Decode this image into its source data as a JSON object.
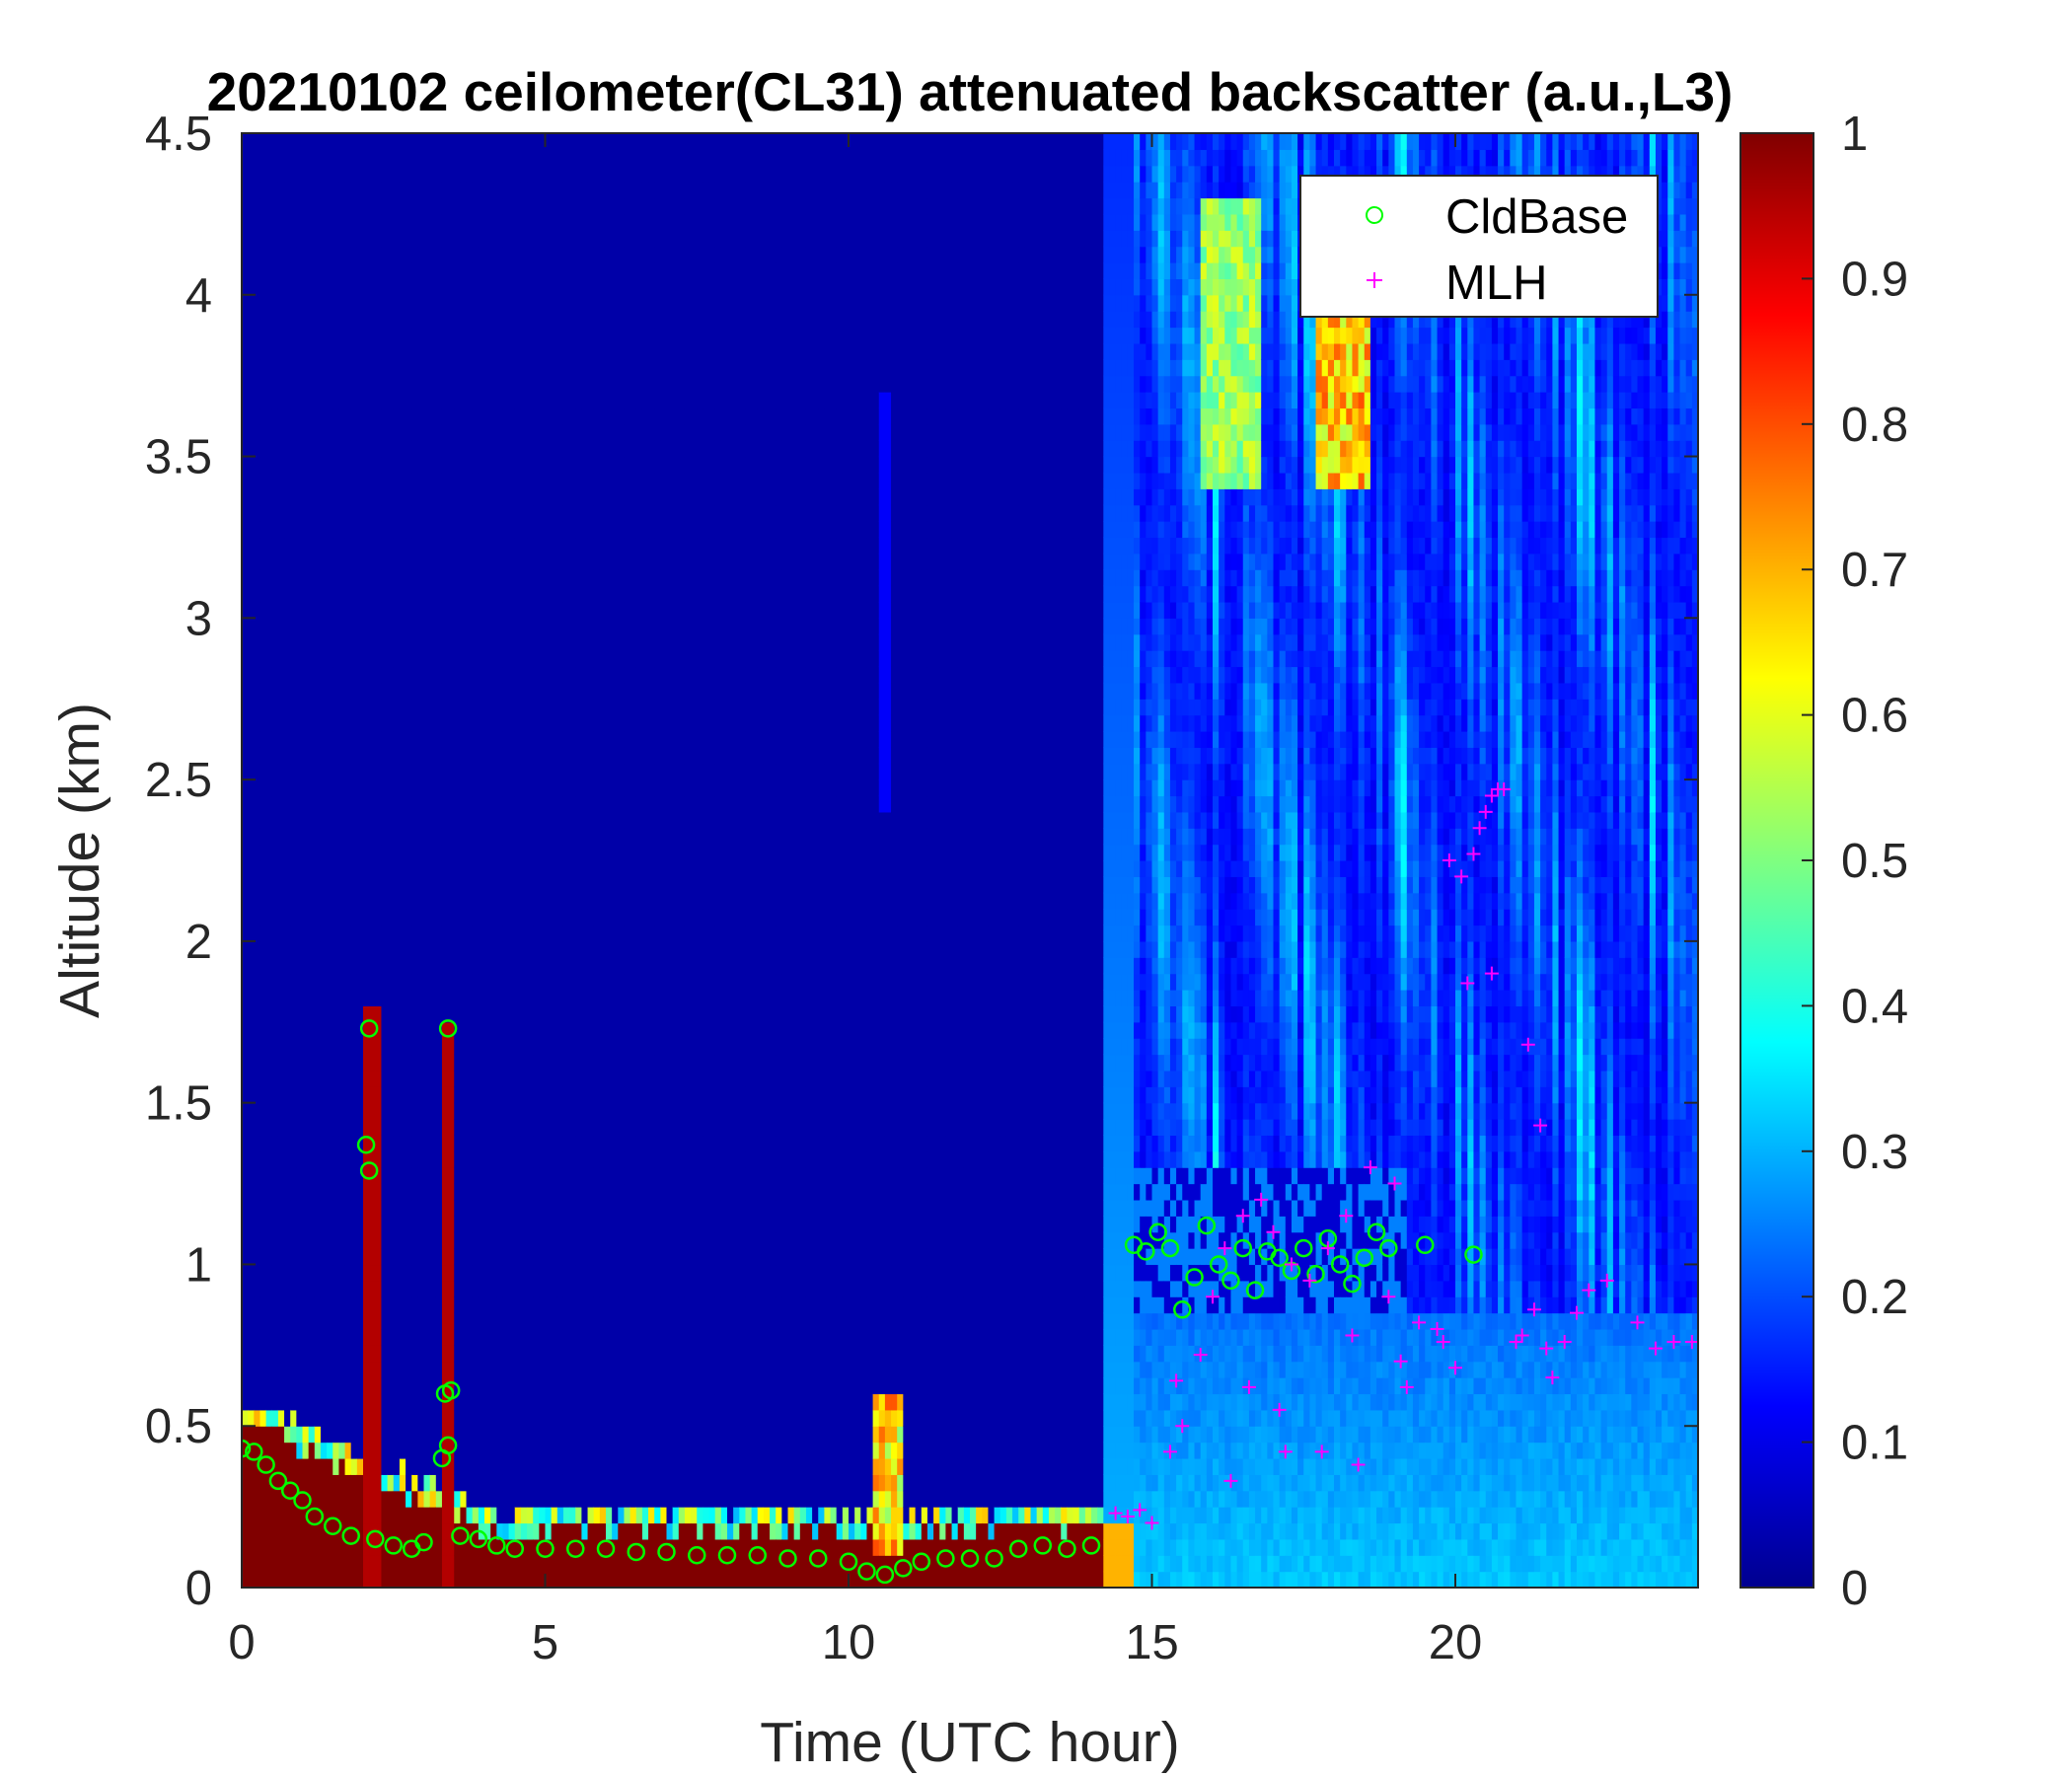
{
  "chart_data": {
    "type": "heatmap",
    "title": "20210102 ceilometer(CL31) attenuated backscatter (a.u.,L3)",
    "xlabel": "Time (UTC hour)",
    "ylabel": "Altitude (km)",
    "xlim": [
      0,
      24
    ],
    "ylim": [
      0,
      4.5
    ],
    "xticks": [
      "0",
      "5",
      "10",
      "15",
      "20"
    ],
    "yticks": [
      "0",
      "0.5",
      "1",
      "1.5",
      "2",
      "2.5",
      "3",
      "3.5",
      "4",
      "4.5"
    ],
    "colorbar": {
      "colormap": "jet",
      "range": [
        0,
        1
      ],
      "ticks": [
        "0",
        "0.1",
        "0.2",
        "0.3",
        "0.4",
        "0.5",
        "0.6",
        "0.7",
        "0.8",
        "0.9",
        "1"
      ]
    },
    "legend": {
      "position": "top-right",
      "entries": [
        {
          "label": "CldBase",
          "marker": "circle",
          "color": "#00ff00"
        },
        {
          "label": "MLH",
          "marker": "plus",
          "color": "#ff00ff"
        }
      ]
    },
    "series": [
      {
        "name": "CldBase",
        "x": [
          0.0,
          0.2,
          0.4,
          0.6,
          0.8,
          1.0,
          1.2,
          1.5,
          1.8,
          2.05,
          2.1,
          2.1,
          2.2,
          2.5,
          2.8,
          3.0,
          3.3,
          3.35,
          3.4,
          3.4,
          3.45,
          3.6,
          3.9,
          4.2,
          4.5,
          5.0,
          5.5,
          6.0,
          6.5,
          7.0,
          7.5,
          8.0,
          8.5,
          9.0,
          9.5,
          10.0,
          10.3,
          10.6,
          10.9,
          11.2,
          11.6,
          12.0,
          12.4,
          12.8,
          13.2,
          13.6,
          14.0,
          14.7,
          14.9,
          15.1,
          15.3,
          15.5,
          15.7,
          15.9,
          16.1,
          16.3,
          16.5,
          16.7,
          16.9,
          17.1,
          17.3,
          17.5,
          17.7,
          17.9,
          18.1,
          18.3,
          18.5,
          18.7,
          18.9,
          19.5,
          20.3
        ],
        "y": [
          0.43,
          0.42,
          0.38,
          0.33,
          0.3,
          0.27,
          0.22,
          0.19,
          0.16,
          1.37,
          1.29,
          1.73,
          0.15,
          0.13,
          0.12,
          0.14,
          0.4,
          0.6,
          0.44,
          1.73,
          0.61,
          0.16,
          0.15,
          0.13,
          0.12,
          0.12,
          0.12,
          0.12,
          0.11,
          0.11,
          0.1,
          0.1,
          0.1,
          0.09,
          0.09,
          0.08,
          0.05,
          0.04,
          0.06,
          0.08,
          0.09,
          0.09,
          0.09,
          0.12,
          0.13,
          0.12,
          0.13,
          1.06,
          1.04,
          1.1,
          1.05,
          0.86,
          0.96,
          1.12,
          1.0,
          0.95,
          1.05,
          0.92,
          1.04,
          1.02,
          0.98,
          1.05,
          0.97,
          1.08,
          1.0,
          0.94,
          1.02,
          1.1,
          1.05,
          1.06,
          1.03
        ]
      },
      {
        "name": "MLH",
        "x": [
          14.4,
          14.6,
          14.8,
          15.0,
          15.3,
          15.5,
          15.8,
          16.0,
          16.2,
          16.5,
          16.8,
          17.0,
          17.3,
          17.6,
          17.9,
          18.2,
          18.6,
          18.9,
          19.1,
          19.4,
          19.7,
          19.9,
          20.1,
          20.2,
          20.3,
          20.4,
          20.5,
          20.6,
          20.7,
          20.8,
          21.0,
          21.1,
          21.3,
          21.5,
          21.6,
          21.8,
          22.0,
          22.2,
          22.5,
          23.0,
          23.3,
          23.6,
          23.9,
          15.4,
          16.6,
          17.2,
          17.8,
          18.4,
          19.2,
          19.8,
          20.6,
          21.2,
          21.4,
          16.3,
          17.1,
          18.3,
          19.0,
          20.0
        ],
        "y": [
          0.23,
          0.22,
          0.24,
          0.2,
          0.42,
          0.5,
          0.72,
          0.9,
          1.05,
          1.15,
          1.2,
          1.1,
          1.0,
          0.95,
          1.05,
          1.15,
          1.3,
          0.9,
          0.7,
          0.82,
          0.8,
          2.25,
          2.2,
          1.87,
          2.27,
          2.35,
          2.4,
          2.45,
          2.47,
          2.47,
          0.76,
          0.78,
          0.86,
          0.74,
          0.65,
          0.76,
          0.85,
          0.92,
          0.95,
          0.82,
          0.74,
          0.76,
          0.76,
          0.64,
          0.62,
          0.42,
          0.42,
          0.38,
          0.62,
          0.76,
          1.9,
          1.68,
          1.43,
          0.33,
          0.55,
          0.78,
          1.25,
          0.68
        ]
      }
    ]
  }
}
